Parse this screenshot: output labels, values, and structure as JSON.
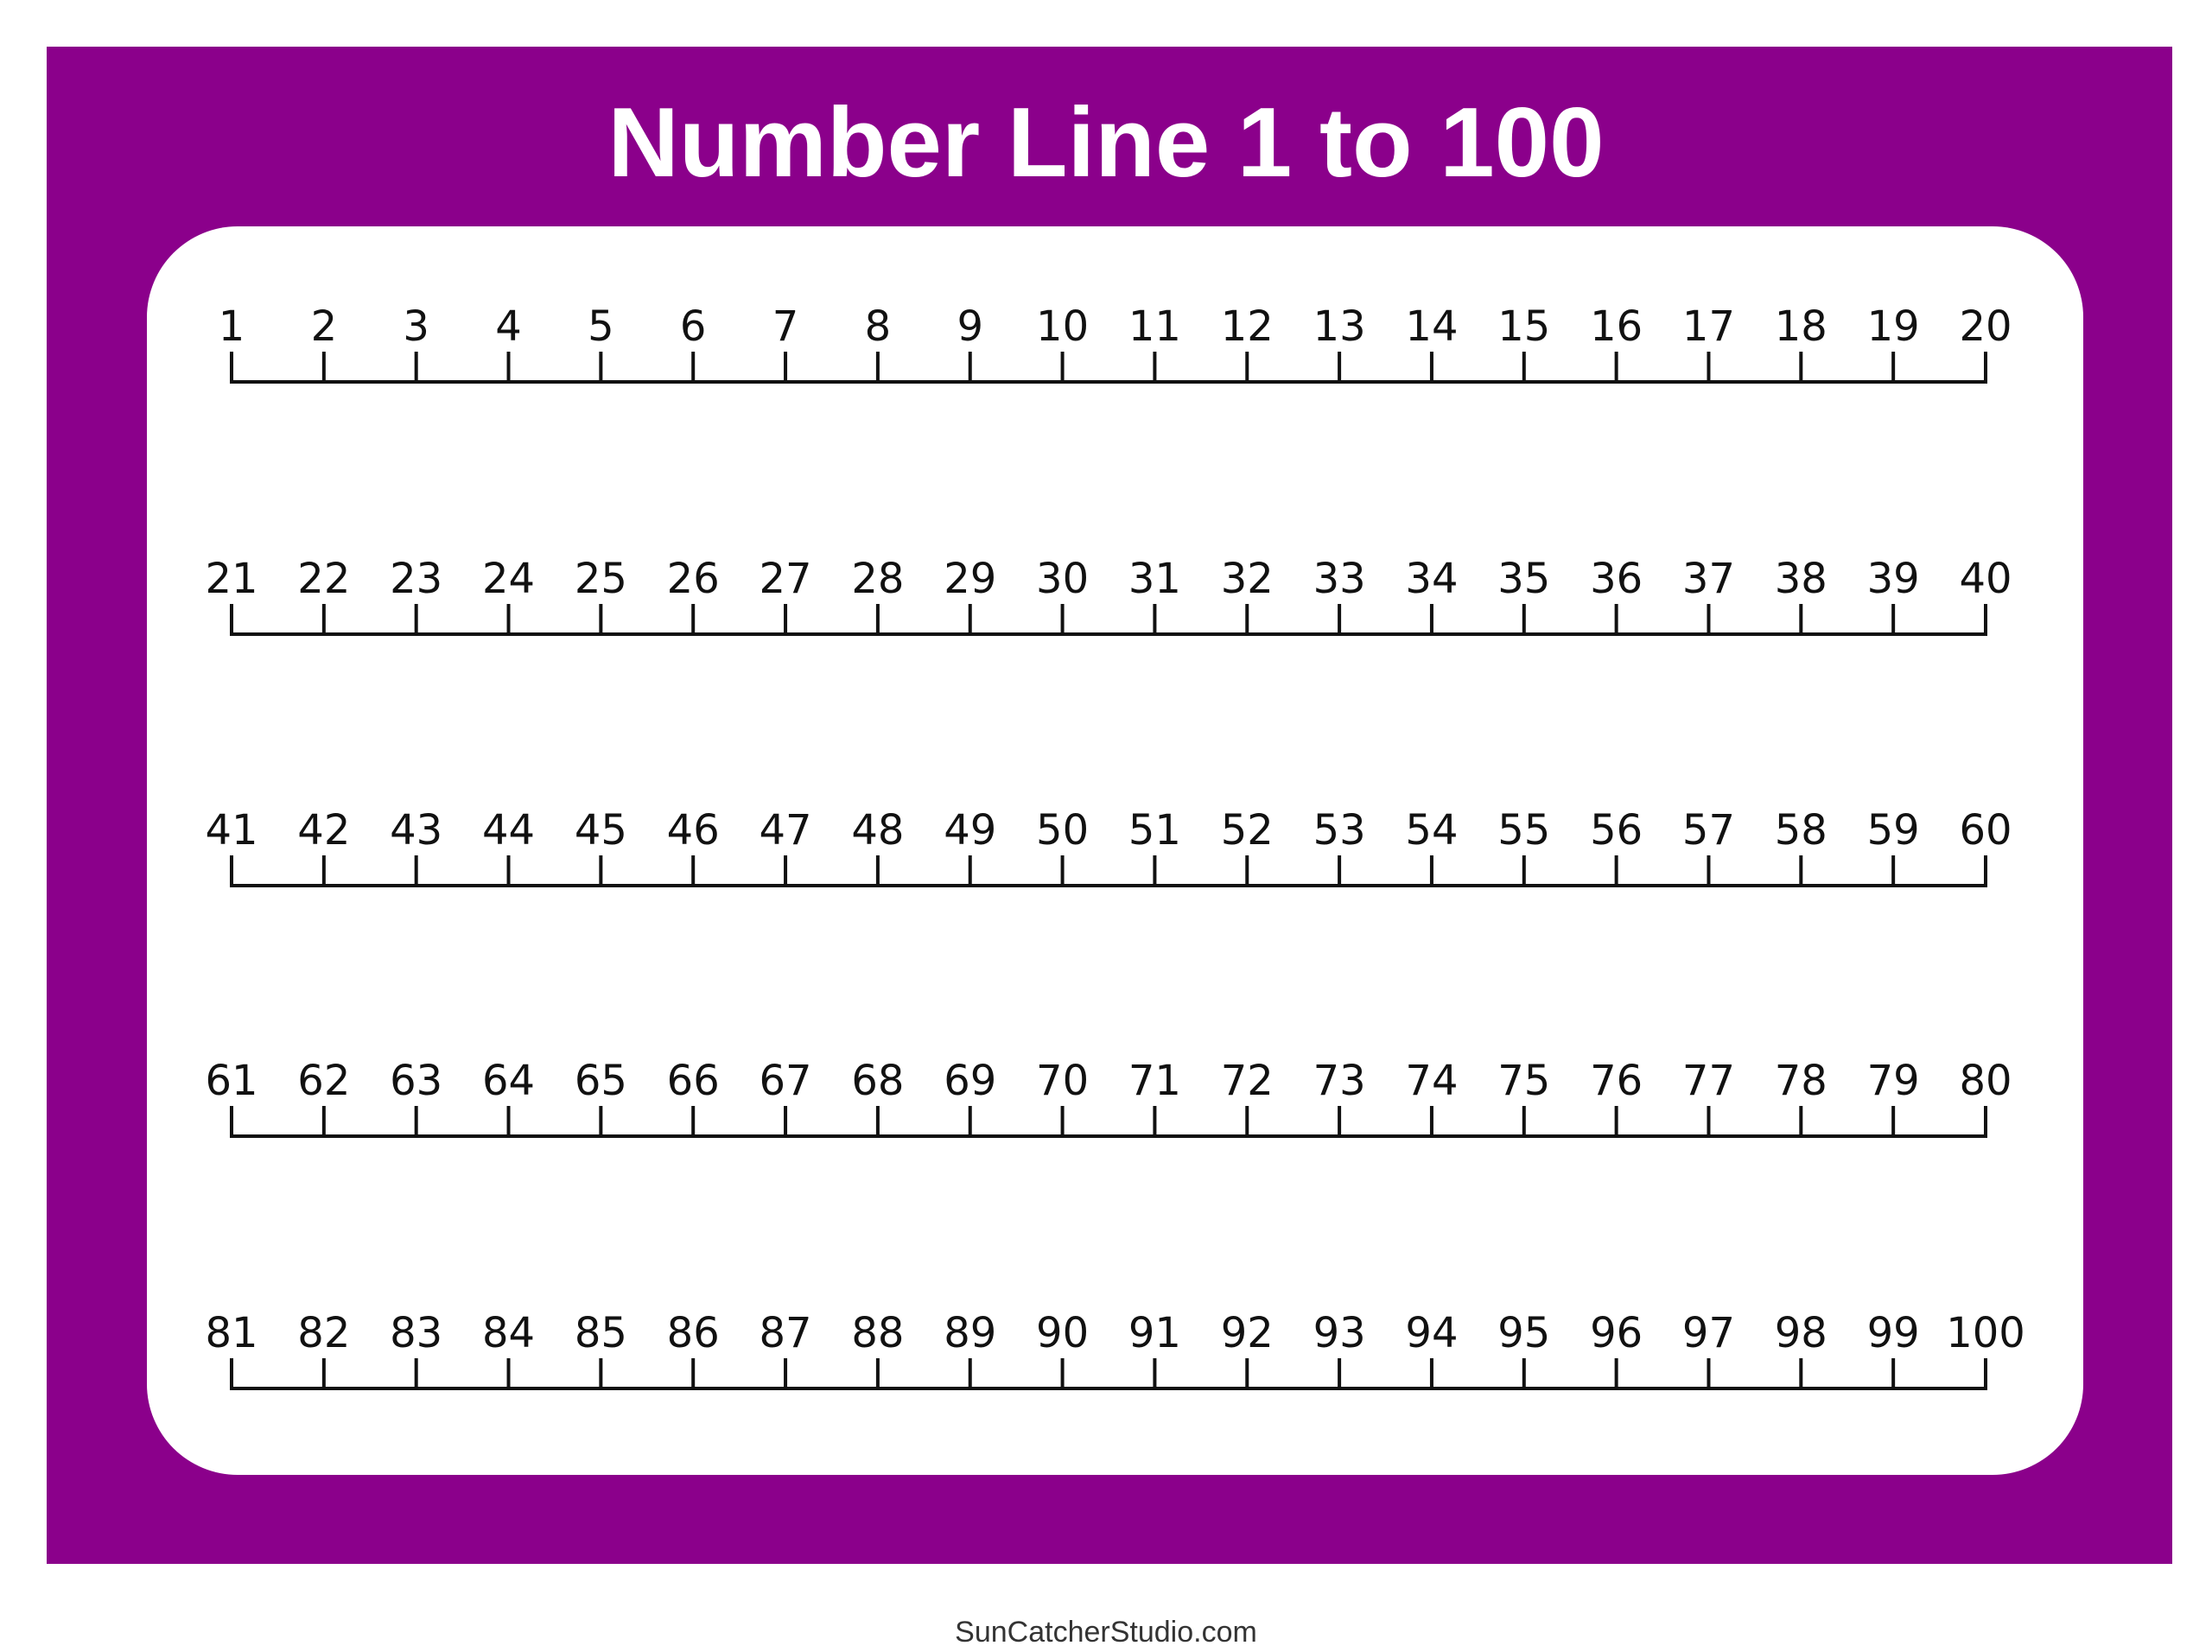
{
  "title": "Number Line 1 to 100",
  "footer": "SunCatcherStudio.com",
  "colors": {
    "frame": "#8B008B",
    "panel": "#FFFFFF",
    "line": "#111111",
    "title": "#FFFFFF"
  },
  "number_lines": [
    {
      "start": 1,
      "end": 20,
      "labels": [
        "1",
        "2",
        "3",
        "4",
        "5",
        "6",
        "7",
        "8",
        "9",
        "10",
        "11",
        "12",
        "13",
        "14",
        "15",
        "16",
        "17",
        "18",
        "19",
        "20"
      ]
    },
    {
      "start": 21,
      "end": 40,
      "labels": [
        "21",
        "22",
        "23",
        "24",
        "25",
        "26",
        "27",
        "28",
        "29",
        "30",
        "31",
        "32",
        "33",
        "34",
        "35",
        "36",
        "37",
        "38",
        "39",
        "40"
      ]
    },
    {
      "start": 41,
      "end": 60,
      "labels": [
        "41",
        "42",
        "43",
        "44",
        "45",
        "46",
        "47",
        "48",
        "49",
        "50",
        "51",
        "52",
        "53",
        "54",
        "55",
        "56",
        "57",
        "58",
        "59",
        "60"
      ]
    },
    {
      "start": 61,
      "end": 80,
      "labels": [
        "61",
        "62",
        "63",
        "64",
        "65",
        "66",
        "67",
        "68",
        "69",
        "70",
        "71",
        "72",
        "73",
        "74",
        "75",
        "76",
        "77",
        "78",
        "79",
        "80"
      ]
    },
    {
      "start": 81,
      "end": 100,
      "labels": [
        "81",
        "82",
        "83",
        "84",
        "85",
        "86",
        "87",
        "88",
        "89",
        "90",
        "91",
        "92",
        "93",
        "94",
        "95",
        "96",
        "97",
        "98",
        "99",
        "100"
      ]
    }
  ]
}
